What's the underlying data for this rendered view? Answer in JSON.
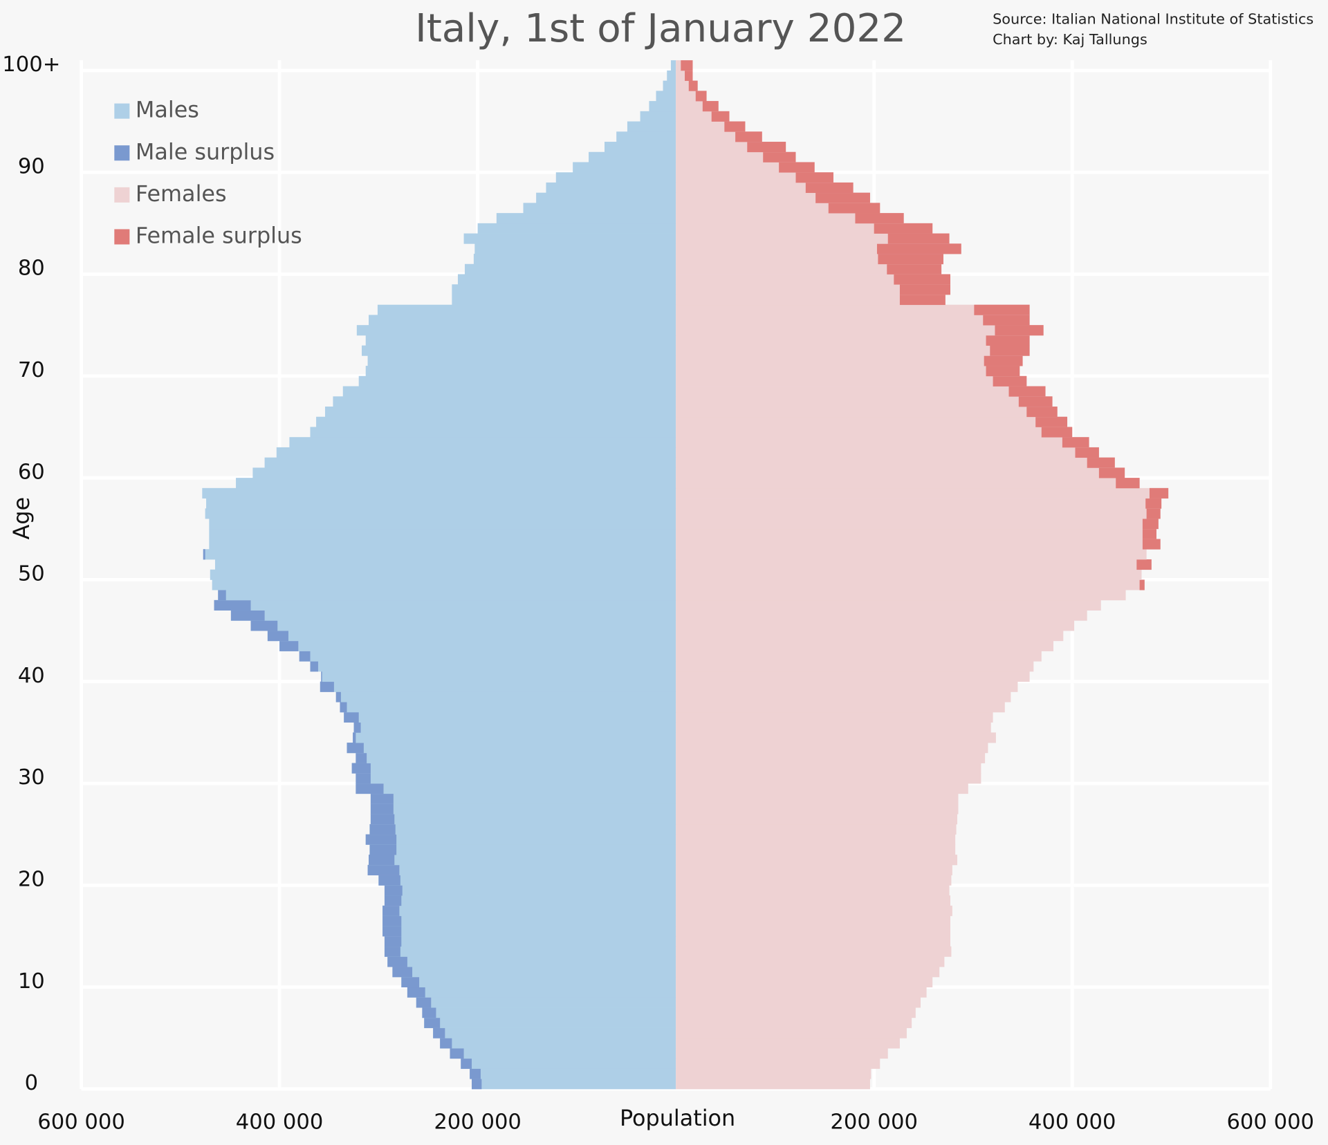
{
  "chart_data": {
    "type": "population-pyramid",
    "title": "Italy, 1st of January 2022",
    "source": "Source: Italian National Institute of Statistics",
    "credit": "Chart by: Kaj Tallungs",
    "x_label": "Population",
    "y_label": "Age",
    "xlim": [
      -600000,
      600000
    ],
    "xticks": [
      {
        "value": -600000,
        "label": "600 000"
      },
      {
        "value": -400000,
        "label": "400 000"
      },
      {
        "value": -200000,
        "label": "200 000"
      },
      {
        "value": 200000,
        "label": "200 000"
      },
      {
        "value": 400000,
        "label": "400 000"
      },
      {
        "value": 600000,
        "label": "600 000"
      }
    ],
    "ylim": [
      0,
      101
    ],
    "yticks": [
      0,
      10,
      20,
      30,
      40,
      50,
      60,
      70,
      80,
      90,
      {
        "value": 100,
        "label": "100+"
      }
    ],
    "grid": true,
    "legend": "upper left",
    "series": [
      {
        "name": "Males",
        "color": "#aecfe7",
        "surplus_name": "Male surplus",
        "surplus_color": "#7a99cf",
        "side": "left",
        "values": [
          206000,
          208000,
          217000,
          228000,
          238000,
          245000,
          254000,
          256000,
          262000,
          271000,
          277000,
          286000,
          291000,
          294000,
          294000,
          296000,
          296000,
          296000,
          294000,
          294000,
          300000,
          311000,
          310000,
          309000,
          313000,
          309000,
          308000,
          308000,
          308000,
          323000,
          323000,
          327000,
          323000,
          332000,
          326000,
          325000,
          335000,
          339000,
          343000,
          359000,
          358000,
          369000,
          380000,
          400000,
          412000,
          429000,
          449000,
          466000,
          462000,
          468000,
          470000,
          465000,
          477000,
          471000,
          471000,
          471000,
          475000,
          474000,
          478000,
          444000,
          427000,
          415000,
          403000,
          390000,
          369000,
          363000,
          354000,
          346000,
          336000,
          320000,
          313000,
          311000,
          317000,
          313000,
          322000,
          310000,
          301000,
          226000,
          226000,
          220000,
          213000,
          204000,
          203000,
          214000,
          200000,
          181000,
          154000,
          141000,
          131000,
          121000,
          104000,
          88000,
          72000,
          60000,
          49000,
          36000,
          27000,
          20000,
          13000,
          9000,
          5000
        ]
      },
      {
        "name": "Females",
        "color": "#eed2d3",
        "surplus_name": "Female surplus",
        "surplus_color": "#e07b78",
        "side": "right",
        "values": [
          196000,
          197000,
          206000,
          214000,
          226000,
          233000,
          238000,
          242000,
          247000,
          253000,
          259000,
          266000,
          271000,
          278000,
          277000,
          277000,
          277000,
          279000,
          277000,
          276000,
          278000,
          279000,
          284000,
          282000,
          282000,
          283000,
          284000,
          285000,
          285000,
          295000,
          308000,
          308000,
          312000,
          315000,
          323000,
          318000,
          320000,
          332000,
          338000,
          345000,
          357000,
          361000,
          369000,
          381000,
          391000,
          402000,
          415000,
          429000,
          454000,
          473000,
          470000,
          480000,
          475000,
          489000,
          485000,
          487000,
          489000,
          490000,
          497000,
          468000,
          453000,
          443000,
          427000,
          417000,
          400000,
          395000,
          385000,
          380000,
          373000,
          354000,
          347000,
          350000,
          357000,
          357000,
          371000,
          357000,
          357000,
          272000,
          277000,
          277000,
          268000,
          270000,
          288000,
          276000,
          259000,
          230000,
          206000,
          196000,
          179000,
          159000,
          140000,
          121000,
          111000,
          87000,
          70000,
          54000,
          43000,
          31000,
          22000,
          17000,
          17000
        ]
      }
    ]
  }
}
